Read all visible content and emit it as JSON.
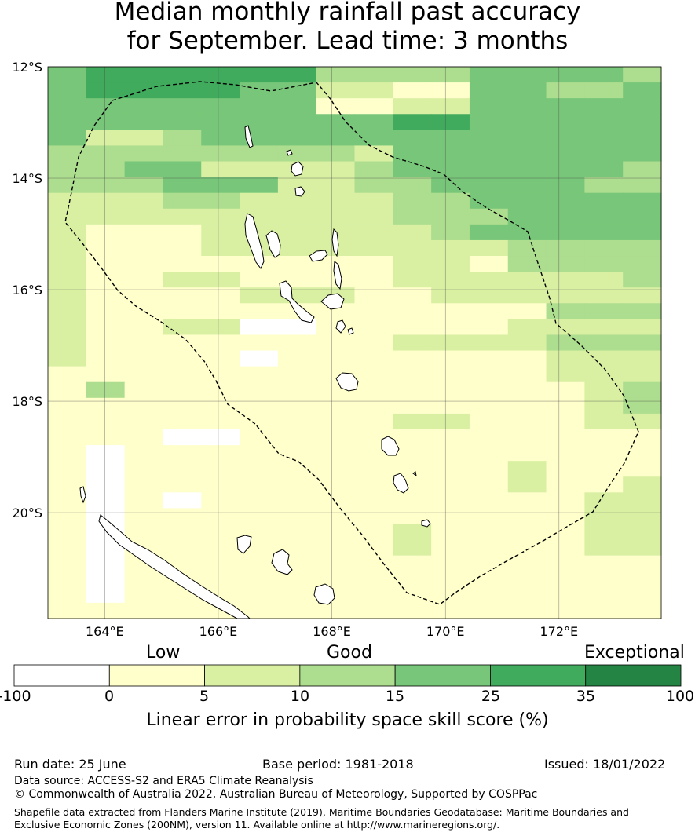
{
  "title": {
    "line1": "Median monthly rainfall past accuracy",
    "line2": "for September. Lead time: 3 months"
  },
  "map": {
    "lon_range": [
      163,
      173.8
    ],
    "lat_range": [
      -12,
      -21.9
    ],
    "lat_ticks": [
      {
        "value": -12,
        "label": "12°S"
      },
      {
        "value": -14,
        "label": "14°S"
      },
      {
        "value": -16,
        "label": "16°S"
      },
      {
        "value": -18,
        "label": "18°S"
      },
      {
        "value": -20,
        "label": "20°S"
      }
    ],
    "lon_ticks": [
      {
        "value": 164,
        "label": "164°E"
      },
      {
        "value": 166,
        "label": "166°E"
      },
      {
        "value": 168,
        "label": "168°E"
      },
      {
        "value": 170,
        "label": "170°E"
      },
      {
        "value": 172,
        "label": "172°E"
      }
    ],
    "colors": [
      "#ffffff",
      "#ffffcc",
      "#d9f0a3",
      "#addd8e",
      "#78c679",
      "#41ab5d",
      "#238443"
    ],
    "grid_rows_skill_class": [
      "4555555333344443",
      "4555544221144334",
      "4444444112244444",
      "4444444445544444",
      "4223444444444444",
      "3333333324444444",
      "3344222234444443",
      "3334442233444433",
      "2223322223344444",
      "2222222223334444",
      "2111222222344444",
      "2111222222223333",
      "2111111112213333",
      "2112211112222223",
      "2111122211222222",
      "2111111111111333",
      "2112200111112222",
      "2111111112222333",
      "2111101111111222",
      "1111111111111222",
      "1311111111111123",
      "1111111111111123",
      "1111111112211122",
      "1110011111111111",
      "1011111111111111",
      "1011111111112111",
      "1011111111112112",
      "1010111111111122",
      "1011111111111122",
      "1011111112111122",
      "1011111112111122",
      "1011111111111111",
      "1011111111111111",
      "1011111111111111",
      "1111111111111111"
    ]
  },
  "colorbar": {
    "categories": [
      {
        "label": "Low"
      },
      {
        "label": "Good"
      },
      {
        "label": "Exceptional"
      }
    ],
    "bins": [
      "#ffffff",
      "#ffffcc",
      "#d9f0a3",
      "#addd8e",
      "#78c679",
      "#41ab5d",
      "#238443"
    ],
    "ticks": [
      "-100",
      "0",
      "5",
      "10",
      "15",
      "25",
      "35",
      "100"
    ],
    "label": "Linear error in probability space skill score (%)"
  },
  "footer": {
    "run_date": "Run date: 25 June",
    "base_period": "Base period: 1981-2018",
    "issued": "Issued: 18/01/2022",
    "data_source": "Data source: ACCESS-S2 and ERA5 Climate Reanalysis",
    "copyright": "© Commonwealth of Australia 2022, Australian Bureau of Meteorology, Supported by COSPPac",
    "shapefile": "Shapefile data extracted from Flanders Marine Institute (2019), Maritime Boundaries Geodatabase: Maritime Boundaries and Exclusive Economic Zones (200NM), version 11. Available online at http://www.marineregions.org/."
  }
}
